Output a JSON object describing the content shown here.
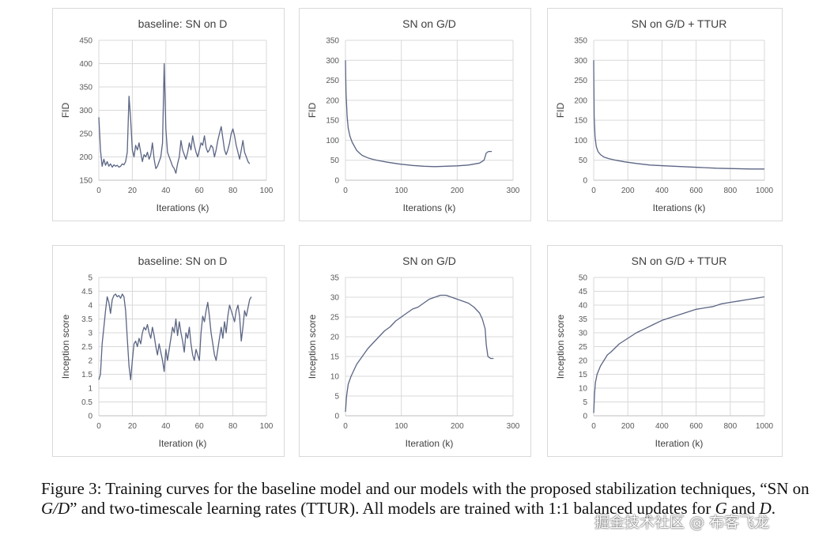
{
  "chart_data": [
    {
      "type": "line",
      "title": "baseline: SN on D",
      "xlabel": "Iterations (k)",
      "ylabel": "FID",
      "xlim": [
        0,
        100
      ],
      "ylim": [
        150,
        450
      ],
      "xticks": [
        0,
        20,
        40,
        60,
        80,
        100
      ],
      "yticks": [
        150,
        200,
        250,
        300,
        350,
        400,
        450
      ],
      "grid": true,
      "series": [
        {
          "name": "FID",
          "x": [
            0,
            1,
            2,
            3,
            4,
            5,
            6,
            7,
            8,
            9,
            10,
            11,
            12,
            13,
            14,
            15,
            16,
            17,
            18,
            19,
            20,
            21,
            22,
            23,
            24,
            25,
            26,
            27,
            28,
            29,
            30,
            31,
            32,
            33,
            34,
            35,
            36,
            37,
            38,
            39,
            40,
            41,
            42,
            43,
            44,
            45,
            46,
            47,
            48,
            49,
            50,
            51,
            52,
            53,
            54,
            55,
            56,
            57,
            58,
            59,
            60,
            61,
            62,
            63,
            64,
            65,
            66,
            67,
            68,
            69,
            70,
            71,
            72,
            73,
            74,
            75,
            76,
            77,
            78,
            79,
            80,
            81,
            82,
            83,
            84,
            85,
            86,
            87,
            88,
            89,
            90
          ],
          "values": [
            285,
            215,
            180,
            195,
            182,
            190,
            180,
            185,
            178,
            183,
            180,
            182,
            178,
            180,
            185,
            183,
            190,
            210,
            330,
            280,
            215,
            200,
            225,
            215,
            230,
            210,
            190,
            205,
            200,
            210,
            195,
            205,
            230,
            195,
            175,
            180,
            190,
            200,
            230,
            400,
            260,
            210,
            200,
            190,
            180,
            175,
            165,
            185,
            200,
            235,
            215,
            205,
            195,
            210,
            230,
            215,
            245,
            225,
            210,
            200,
            215,
            230,
            225,
            245,
            220,
            210,
            215,
            225,
            220,
            200,
            215,
            235,
            250,
            265,
            240,
            215,
            205,
            215,
            230,
            250,
            260,
            245,
            225,
            210,
            195,
            215,
            235,
            210,
            200,
            190,
            185
          ]
        }
      ]
    },
    {
      "type": "line",
      "title": "SN on G/D",
      "xlabel": "Iterations (k)",
      "ylabel": "FID",
      "xlim": [
        0,
        300
      ],
      "ylim": [
        0,
        350
      ],
      "xticks": [
        0,
        100,
        200,
        300
      ],
      "yticks": [
        0,
        50,
        100,
        150,
        200,
        250,
        300,
        350
      ],
      "grid": true,
      "series": [
        {
          "name": "FID",
          "x": [
            0,
            1,
            3,
            5,
            8,
            12,
            16,
            20,
            25,
            30,
            40,
            50,
            60,
            75,
            90,
            100,
            120,
            140,
            160,
            180,
            200,
            220,
            240,
            248,
            252,
            256,
            262
          ],
          "values": [
            300,
            220,
            160,
            130,
            110,
            95,
            85,
            75,
            68,
            62,
            56,
            52,
            49,
            45,
            42,
            40,
            37,
            35,
            34,
            35,
            36,
            38,
            43,
            50,
            68,
            72,
            72
          ]
        }
      ]
    },
    {
      "type": "line",
      "title": "SN on G/D + TTUR",
      "xlabel": "Iterations (k)",
      "ylabel": "FID",
      "xlim": [
        0,
        1000
      ],
      "ylim": [
        0,
        350
      ],
      "xticks": [
        0,
        200,
        400,
        600,
        800,
        1000
      ],
      "yticks": [
        0,
        50,
        100,
        150,
        200,
        250,
        300,
        350
      ],
      "grid": true,
      "series": [
        {
          "name": "FID",
          "x": [
            0,
            3,
            8,
            15,
            25,
            40,
            60,
            90,
            130,
            180,
            250,
            330,
            420,
            520,
            620,
            720,
            820,
            920,
            1000
          ],
          "values": [
            300,
            160,
            110,
            85,
            72,
            64,
            58,
            54,
            50,
            46,
            42,
            38,
            36,
            34,
            32,
            30,
            29,
            28,
            28
          ]
        }
      ]
    },
    {
      "type": "line",
      "title": "baseline: SN on D",
      "xlabel": "Iteration (k)",
      "ylabel": "Inception score",
      "xlim": [
        0,
        100
      ],
      "ylim": [
        0,
        5
      ],
      "xticks": [
        0,
        20,
        40,
        60,
        80,
        100
      ],
      "yticks": [
        0,
        0.5,
        1,
        1.5,
        2,
        2.5,
        3,
        3.5,
        4,
        4.5,
        5
      ],
      "grid": true,
      "series": [
        {
          "name": "Inception score",
          "x": [
            0,
            1,
            2,
            3,
            4,
            5,
            6,
            7,
            8,
            9,
            10,
            11,
            12,
            13,
            14,
            15,
            16,
            17,
            18,
            19,
            20,
            21,
            22,
            23,
            24,
            25,
            26,
            27,
            28,
            29,
            30,
            31,
            32,
            33,
            34,
            35,
            36,
            37,
            38,
            39,
            40,
            41,
            42,
            43,
            44,
            45,
            46,
            47,
            48,
            49,
            50,
            51,
            52,
            53,
            54,
            55,
            56,
            57,
            58,
            59,
            60,
            61,
            62,
            63,
            64,
            65,
            66,
            67,
            68,
            69,
            70,
            71,
            72,
            73,
            74,
            75,
            76,
            77,
            78,
            79,
            80,
            81,
            82,
            83,
            84,
            85,
            86,
            87,
            88,
            89,
            90,
            91
          ],
          "values": [
            1.3,
            1.5,
            2.6,
            3.2,
            3.8,
            4.3,
            4.1,
            3.7,
            4.2,
            4.35,
            4.4,
            4.3,
            4.35,
            4.25,
            4.4,
            4.3,
            3.8,
            2.8,
            1.8,
            1.3,
            2.0,
            2.6,
            2.7,
            2.5,
            2.8,
            2.6,
            3.0,
            3.2,
            3.1,
            3.3,
            3.0,
            2.8,
            3.2,
            2.9,
            2.5,
            2.2,
            2.6,
            2.3,
            2.0,
            1.6,
            2.4,
            2.0,
            2.4,
            2.8,
            3.2,
            3.0,
            3.5,
            2.9,
            3.4,
            3.0,
            2.7,
            2.3,
            3.0,
            2.8,
            3.2,
            2.6,
            2.2,
            2.0,
            2.4,
            2.2,
            2.0,
            3.0,
            3.6,
            3.4,
            3.8,
            4.1,
            3.6,
            3.0,
            2.6,
            2.2,
            2.0,
            2.4,
            2.8,
            3.2,
            2.8,
            3.4,
            3.0,
            3.6,
            4.0,
            3.8,
            3.6,
            3.4,
            3.8,
            4.0,
            3.6,
            2.7,
            3.2,
            3.8,
            3.6,
            3.9,
            4.2,
            4.3
          ]
        }
      ]
    },
    {
      "type": "line",
      "title": "SN on G/D",
      "xlabel": "Iteration (k)",
      "ylabel": "Inception score",
      "xlim": [
        0,
        300
      ],
      "ylim": [
        0,
        35
      ],
      "xticks": [
        0,
        100,
        200,
        300
      ],
      "yticks": [
        0,
        5,
        10,
        15,
        20,
        25,
        30,
        35
      ],
      "grid": true,
      "series": [
        {
          "name": "Inception score",
          "x": [
            0,
            2,
            5,
            10,
            15,
            20,
            30,
            40,
            50,
            60,
            70,
            80,
            90,
            100,
            110,
            120,
            130,
            140,
            150,
            160,
            170,
            180,
            190,
            200,
            210,
            220,
            230,
            240,
            245,
            250,
            252,
            255,
            260,
            265
          ],
          "values": [
            1,
            5,
            8,
            10,
            11.5,
            13,
            15,
            17,
            18.5,
            20,
            21.5,
            22.5,
            24,
            25,
            26,
            27,
            27.5,
            28.5,
            29.5,
            30,
            30.5,
            30.5,
            30,
            29.5,
            29,
            28.5,
            27.5,
            26,
            24.5,
            22,
            18,
            15,
            14.5,
            14.5
          ]
        }
      ]
    },
    {
      "type": "line",
      "title": "SN on G/D + TTUR",
      "xlabel": "Iteration (k)",
      "ylabel": "Inception score",
      "xlim": [
        0,
        1000
      ],
      "ylim": [
        0,
        50
      ],
      "xticks": [
        0,
        200,
        400,
        600,
        800,
        1000
      ],
      "yticks": [
        0,
        5,
        10,
        15,
        20,
        25,
        30,
        35,
        40,
        45,
        50
      ],
      "grid": true,
      "series": [
        {
          "name": "Inception score",
          "x": [
            0,
            5,
            10,
            20,
            40,
            60,
            80,
            100,
            150,
            200,
            250,
            300,
            350,
            400,
            450,
            500,
            550,
            600,
            650,
            700,
            750,
            800,
            850,
            900,
            950,
            1000
          ],
          "values": [
            1,
            8,
            12,
            15,
            18,
            20,
            22,
            23,
            26,
            28,
            30,
            31.5,
            33,
            34.5,
            35.5,
            36.5,
            37.5,
            38.5,
            39,
            39.5,
            40.5,
            41,
            41.5,
            42,
            42.5,
            43
          ]
        }
      ]
    }
  ],
  "caption": {
    "label": "Figure 3:",
    "seg1": " Training curves for the baseline model and our models with the proposed stabilization techniques, “SN on ",
    "var_gd": "G/D",
    "seg2": "” and two-timescale learning rates (TTUR). All models are trained with 1:1 balanced updates for ",
    "var_g": "G",
    "seg3": " and ",
    "var_d": "D",
    "seg4": "."
  },
  "watermark": "掘金技术社区 @ 布客飞龙",
  "colors": {
    "series": "#5b6584",
    "grid": "#d9d9d9",
    "border": "#d9d9d9",
    "text": "#404040"
  }
}
